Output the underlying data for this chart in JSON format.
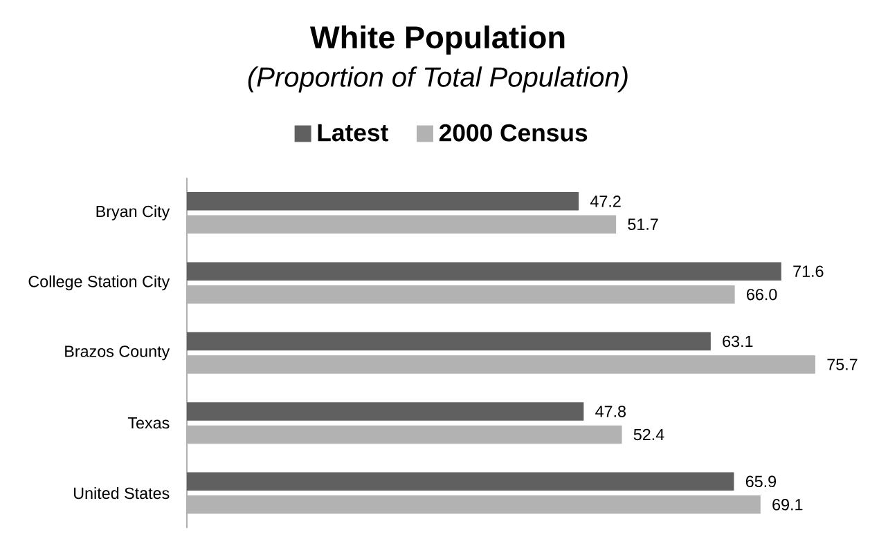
{
  "chart_data": {
    "type": "bar",
    "orientation": "horizontal",
    "title": "White Population",
    "subtitle": "(Proportion of Total Population)",
    "categories": [
      "Bryan City",
      "College Station City",
      "Brazos County",
      "Texas",
      "United States"
    ],
    "series": [
      {
        "name": "Latest",
        "color": "#606060",
        "values": [
          47.2,
          71.6,
          63.1,
          47.8,
          65.9
        ],
        "value_labels": [
          "47.2",
          "71.6",
          "63.1",
          "47.8",
          "65.9"
        ]
      },
      {
        "name": "2000 Census",
        "color": "#b2b2b2",
        "values": [
          51.7,
          66.0,
          75.7,
          52.4,
          69.1
        ],
        "value_labels": [
          "51.7",
          "66.0",
          "75.7",
          "52.4",
          "69.1"
        ]
      }
    ],
    "legend": "top",
    "tick_labels": "y"
  }
}
